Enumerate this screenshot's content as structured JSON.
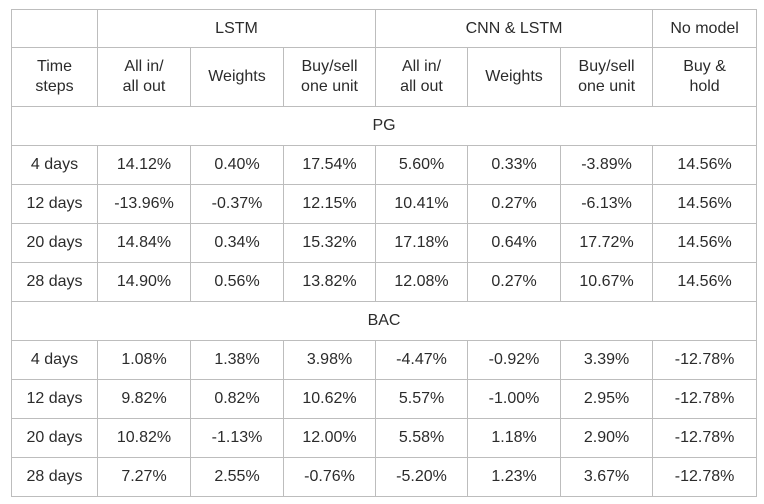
{
  "header": {
    "groups": [
      "",
      "LSTM",
      "CNN & LSTM",
      "No model"
    ],
    "sub": [
      "Time\nsteps",
      "All in/\nall out",
      "Weights",
      "Buy/sell\none unit",
      "All in/\nall out",
      "Weights",
      "Buy/sell\none unit",
      "Buy &\nhold"
    ]
  },
  "sections": [
    {
      "title": "PG",
      "rows": [
        [
          "4 days",
          "14.12%",
          "0.40%",
          "17.54%",
          "5.60%",
          "0.33%",
          "-3.89%",
          "14.56%"
        ],
        [
          "12 days",
          "-13.96%",
          "-0.37%",
          "12.15%",
          "10.41%",
          "0.27%",
          "-6.13%",
          "14.56%"
        ],
        [
          "20 days",
          "14.84%",
          "0.34%",
          "15.32%",
          "17.18%",
          "0.64%",
          "17.72%",
          "14.56%"
        ],
        [
          "28 days",
          "14.90%",
          "0.56%",
          "13.82%",
          "12.08%",
          "0.27%",
          "10.67%",
          "14.56%"
        ]
      ]
    },
    {
      "title": "BAC",
      "rows": [
        [
          "4 days",
          "1.08%",
          "1.38%",
          "3.98%",
          "-4.47%",
          "-0.92%",
          "3.39%",
          "-12.78%"
        ],
        [
          "12 days",
          "9.82%",
          "0.82%",
          "10.62%",
          "5.57%",
          "-1.00%",
          "2.95%",
          "-12.78%"
        ],
        [
          "20 days",
          "10.82%",
          "-1.13%",
          "12.00%",
          "5.58%",
          "1.18%",
          "2.90%",
          "-12.78%"
        ],
        [
          "28 days",
          "7.27%",
          "2.55%",
          "-0.76%",
          "-5.20%",
          "1.23%",
          "3.67%",
          "-12.78%"
        ]
      ]
    }
  ]
}
